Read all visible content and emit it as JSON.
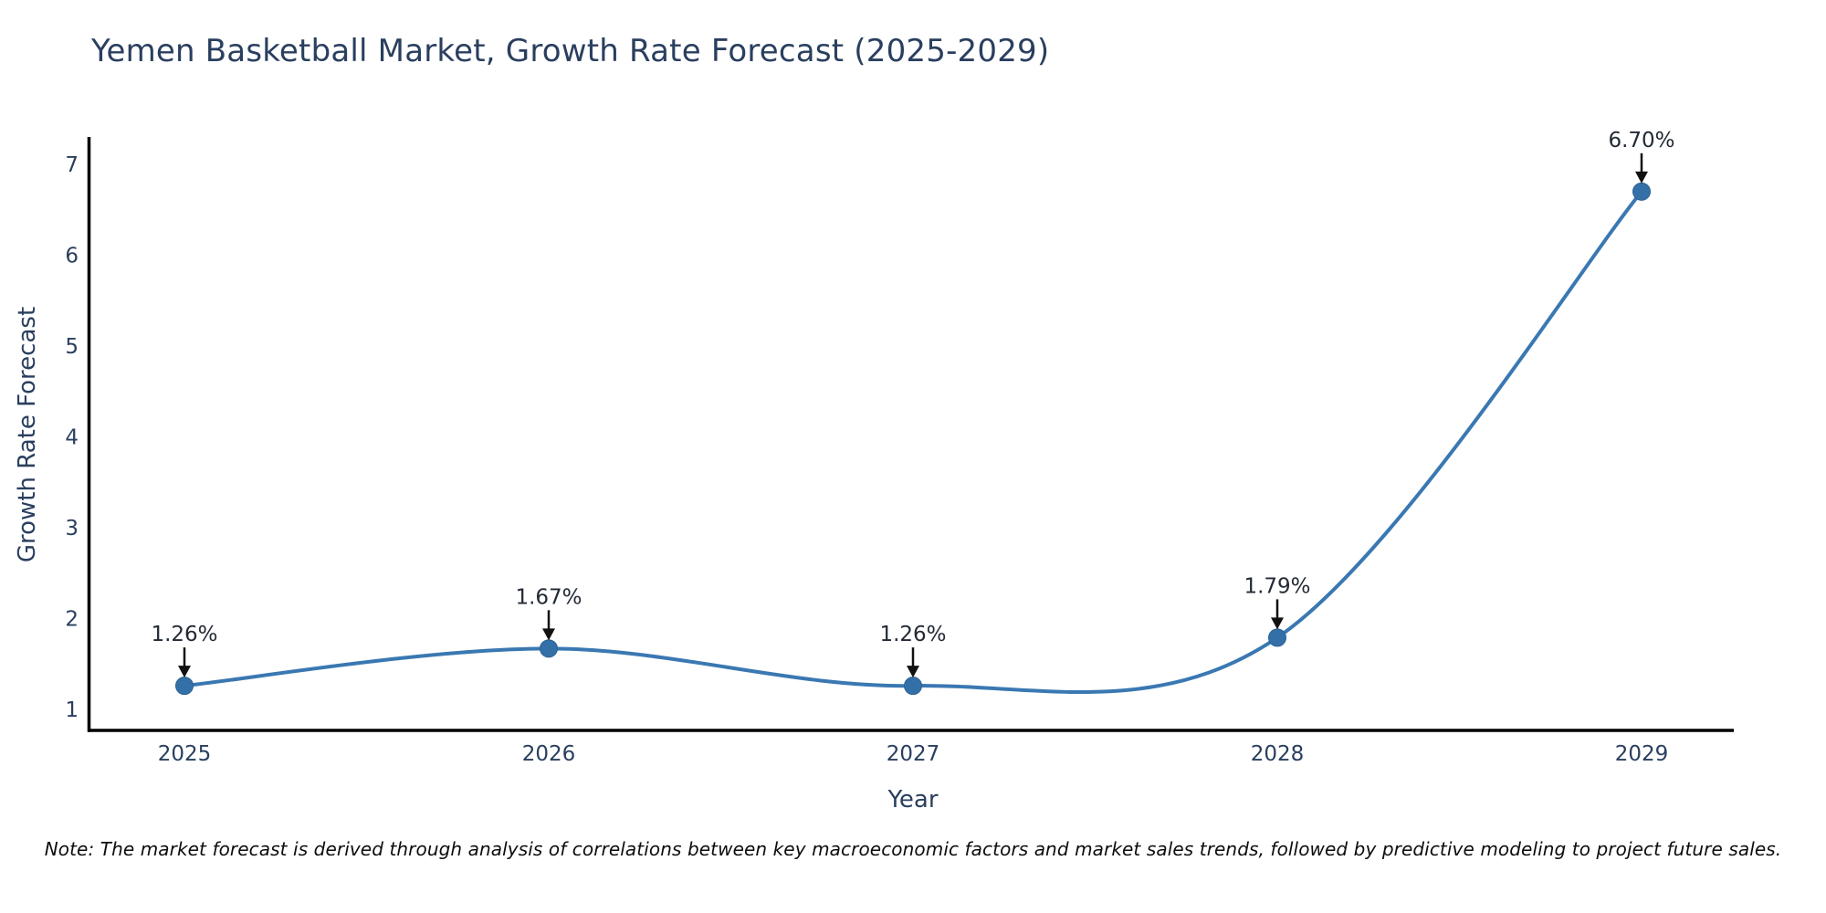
{
  "title": "Yemen Basketball Market, Growth Rate Forecast (2025-2029)",
  "note": "Note: The market forecast is derived through analysis of correlations between key macroeconomic factors and market sales trends, followed by predictive modeling to project future sales.",
  "chart_data": {
    "type": "line",
    "line_shape": "spline",
    "x": [
      2025,
      2026,
      2027,
      2028,
      2029
    ],
    "series": [
      {
        "name": "Growth Rate Forecast",
        "values": [
          1.26,
          1.67,
          1.26,
          1.79,
          6.7
        ]
      }
    ],
    "point_labels": [
      "1.26%",
      "1.67%",
      "1.26%",
      "1.79%",
      "6.70%"
    ],
    "xlabel": "Year",
    "ylabel": "Growth Rate Forecast",
    "ylim": [
      1,
      7
    ],
    "yticks": [
      1,
      2,
      3,
      4,
      5,
      6,
      7
    ],
    "grid": false,
    "legend": "none",
    "colors": {
      "line": "#3a78b2",
      "marker_fill": "#3470a8",
      "marker_edge": "#2d618f",
      "axis_line": "#000000",
      "tick_text": "#2a3f5f",
      "annotation_text": "#222a35",
      "annotation_arrow": "#111111",
      "background": "#ffffff"
    }
  }
}
